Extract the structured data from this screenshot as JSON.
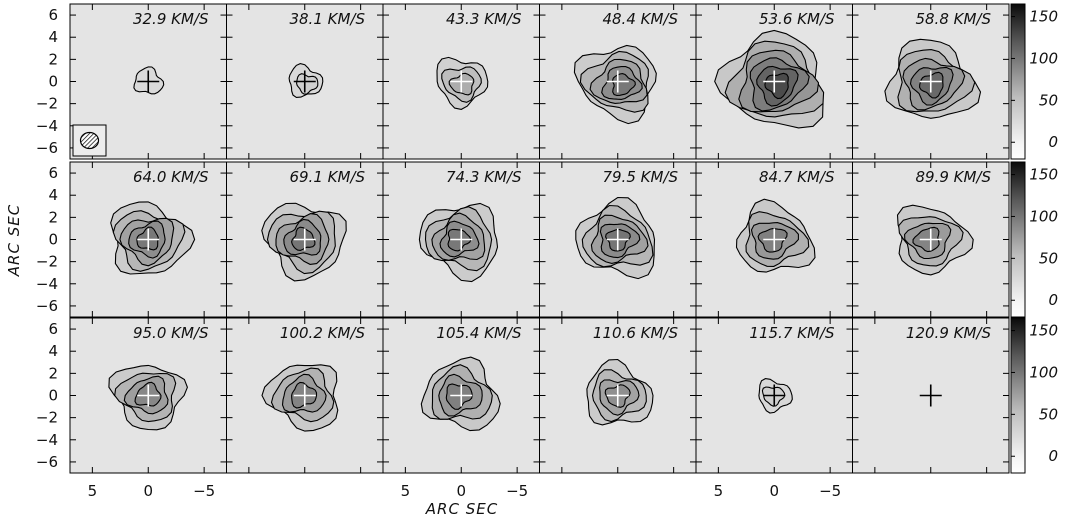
{
  "figure": {
    "x_axis_label": "ARC SEC",
    "y_axis_label": "ARC SEC",
    "x_ticks": [
      "5",
      "0",
      "−5"
    ],
    "y_ticks": [
      "6",
      "4",
      "2",
      "0",
      "−2",
      "−4",
      "−6"
    ],
    "colorbar_ticks": [
      "150",
      "100",
      "50",
      "0"
    ],
    "colorbar_values": [
      150,
      100,
      50,
      0
    ],
    "colorbar_range": [
      -20,
      165
    ],
    "x_range": [
      7,
      -7
    ],
    "y_range": [
      -7,
      7
    ],
    "beam_icon": "hatched-ellipse-beam"
  },
  "panels": [
    {
      "velocity": "32.9 KM/S",
      "emission": 0.05
    },
    {
      "velocity": "38.1 KM/S",
      "emission": 0.12
    },
    {
      "velocity": "43.3 KM/S",
      "emission": 0.35
    },
    {
      "velocity": "48.4 KM/S",
      "emission": 0.7
    },
    {
      "velocity": "53.6 KM/S",
      "emission": 1.0
    },
    {
      "velocity": "58.8 KM/S",
      "emission": 0.8
    },
    {
      "velocity": "64.0 KM/S",
      "emission": 0.7
    },
    {
      "velocity": "69.1 KM/S",
      "emission": 0.72
    },
    {
      "velocity": "74.3 KM/S",
      "emission": 0.7
    },
    {
      "velocity": "79.5 KM/S",
      "emission": 0.72
    },
    {
      "velocity": "84.7 KM/S",
      "emission": 0.65
    },
    {
      "velocity": "89.9 KM/S",
      "emission": 0.62
    },
    {
      "velocity": "95.0 KM/S",
      "emission": 0.6
    },
    {
      "velocity": "100.2 KM/S",
      "emission": 0.62
    },
    {
      "velocity": "105.4 KM/S",
      "emission": 0.65
    },
    {
      "velocity": "110.6 KM/S",
      "emission": 0.55
    },
    {
      "velocity": "115.7 KM/S",
      "emission": 0.12
    },
    {
      "velocity": "120.9 KM/S",
      "emission": 0.0
    }
  ]
}
